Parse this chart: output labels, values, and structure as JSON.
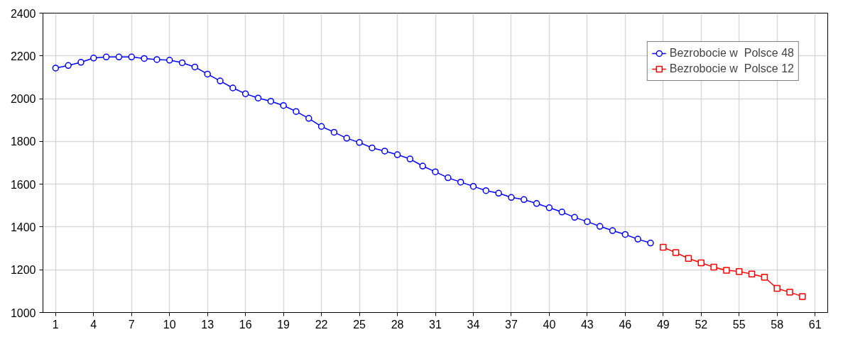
{
  "chart_data": {
    "type": "line",
    "xlim": [
      0,
      62
    ],
    "ylim": [
      1000,
      2400
    ],
    "xticks": [
      1,
      4,
      7,
      10,
      13,
      16,
      19,
      22,
      25,
      28,
      31,
      34,
      37,
      40,
      43,
      46,
      49,
      52,
      55,
      58,
      61
    ],
    "yticks": [
      1000,
      1200,
      1400,
      1600,
      1800,
      2000,
      2200,
      2400
    ],
    "grid": true,
    "legend": "top right",
    "series": [
      {
        "name": "Bezrobocie w  Polsce 48",
        "color": "#0000ff",
        "marker": "circle",
        "x": [
          1,
          2,
          3,
          4,
          5,
          6,
          7,
          8,
          9,
          10,
          11,
          12,
          13,
          14,
          15,
          16,
          17,
          18,
          19,
          20,
          21,
          22,
          23,
          24,
          25,
          26,
          27,
          28,
          29,
          30,
          31,
          32,
          33,
          34,
          35,
          36,
          37,
          38,
          39,
          40,
          41,
          42,
          43,
          44,
          45,
          46,
          47,
          48
        ],
        "values": [
          2143,
          2155,
          2170,
          2190,
          2195,
          2195,
          2195,
          2188,
          2183,
          2180,
          2168,
          2148,
          2115,
          2083,
          2050,
          2023,
          2003,
          1988,
          1968,
          1940,
          1908,
          1870,
          1843,
          1815,
          1795,
          1770,
          1755,
          1738,
          1718,
          1685,
          1658,
          1630,
          1610,
          1590,
          1570,
          1558,
          1538,
          1528,
          1510,
          1490,
          1470,
          1445,
          1425,
          1403,
          1383,
          1365,
          1343,
          1325
        ]
      },
      {
        "name": "Bezrobocie w  Polsce 12",
        "color": "#ff0000",
        "marker": "square",
        "x": [
          49,
          50,
          51,
          52,
          53,
          54,
          55,
          56,
          57,
          58,
          59,
          60
        ],
        "values": [
          1305,
          1280,
          1253,
          1232,
          1212,
          1197,
          1192,
          1180,
          1165,
          1113,
          1095,
          1075
        ]
      }
    ]
  }
}
